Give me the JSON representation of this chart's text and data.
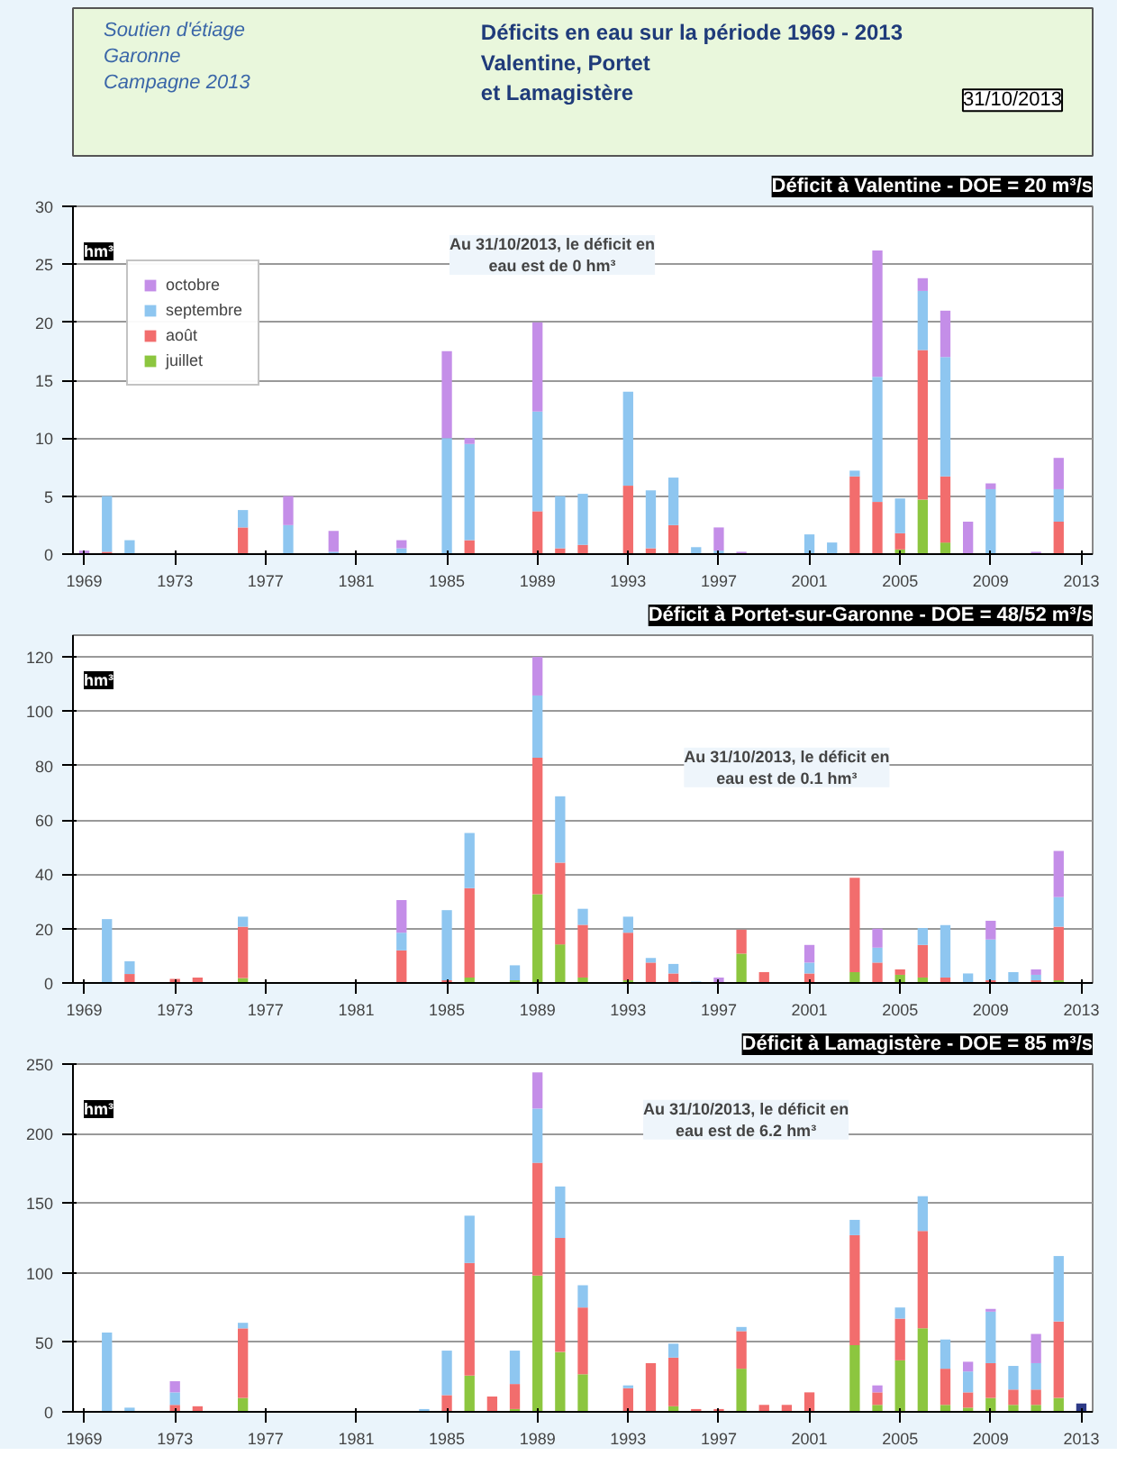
{
  "chart_data": [
    {
      "type": "other",
      "title": "Déficits en eau sur la période 1969 - 2013\nValentine, Portet\net Lamagistère",
      "annotations": [
        "Soutien d'étiage\nGaronne\nCampagne 2013",
        "31/10/2013"
      ]
    },
    {
      "type": "bar",
      "title": "Déficit à Valentine - DOE = 20 m³/s",
      "stacked": true,
      "legend": "top left",
      "grid": "y",
      "ylim": [
        0,
        30
      ],
      "yticks": [
        0,
        5,
        10,
        15,
        20,
        25,
        30
      ],
      "annotations": [
        "hm³",
        "Au 31/10/2013, le déficit en\neau est de 0 hm³"
      ],
      "categories": [
        "1969",
        null,
        null,
        null,
        "1973",
        null,
        null,
        null,
        "1977",
        null,
        null,
        null,
        "1981",
        null,
        null,
        null,
        "1985",
        null,
        null,
        null,
        "1989",
        null,
        null,
        null,
        "1993",
        null,
        null,
        null,
        "1997",
        null,
        null,
        null,
        "2001",
        null,
        null,
        null,
        "2005",
        null,
        null,
        null,
        "2009",
        null,
        null,
        null,
        "2013"
      ],
      "series": [
        {
          "name": "juillet",
          "color": "#8cc63f",
          "values": [
            null,
            null,
            null,
            null,
            null,
            null,
            null,
            null,
            null,
            null,
            null,
            null,
            null,
            null,
            null,
            null,
            null,
            null,
            null,
            null,
            null,
            null,
            null,
            null,
            null,
            null,
            null,
            null,
            null,
            null,
            null,
            null,
            null,
            null,
            null,
            null,
            0.4,
            4.7,
            1,
            null,
            null,
            null,
            null,
            null,
            null
          ]
        },
        {
          "name": "août",
          "color": "#f26d6d",
          "values": [
            null,
            0.2,
            null,
            null,
            null,
            null,
            null,
            2.3,
            null,
            null,
            null,
            null,
            null,
            null,
            null,
            null,
            null,
            1.2,
            null,
            null,
            3.7,
            0.5,
            0.8,
            null,
            5.9,
            0.5,
            2.5,
            null,
            null,
            null,
            null,
            null,
            null,
            null,
            6.7,
            4.5,
            1.4,
            12.9,
            5.7,
            null,
            null,
            null,
            null,
            2.8,
            null
          ]
        },
        {
          "name": "septembre",
          "color": "#8ec6f0",
          "values": [
            null,
            4.8,
            1.2,
            null,
            null,
            null,
            null,
            1.5,
            null,
            2.5,
            null,
            0.2,
            null,
            null,
            0.5,
            null,
            10,
            8.3,
            null,
            null,
            8.6,
            4.5,
            4.4,
            null,
            8.1,
            5,
            4.1,
            0.6,
            0.3,
            null,
            null,
            null,
            1.7,
            1,
            0.5,
            10.8,
            3,
            5.1,
            10.3,
            null,
            5.6,
            null,
            null,
            2.8,
            null
          ]
        },
        {
          "name": "octobre",
          "color": "#c48ee8",
          "values": [
            0.3,
            null,
            null,
            null,
            null,
            null,
            null,
            null,
            null,
            2.5,
            null,
            1.8,
            null,
            null,
            0.7,
            null,
            7.5,
            0.5,
            null,
            null,
            7.7,
            null,
            null,
            null,
            null,
            null,
            null,
            null,
            2,
            0.2,
            null,
            null,
            null,
            null,
            null,
            10.9,
            null,
            1.1,
            4,
            2.8,
            0.5,
            null,
            0.2,
            2.7,
            null
          ]
        }
      ]
    },
    {
      "type": "bar",
      "title": "Déficit à Portet-sur-Garonne - DOE = 48/52 m³/s",
      "stacked": true,
      "grid": "y",
      "ylim": [
        0,
        128
      ],
      "yticks": [
        0,
        20,
        40,
        60,
        80,
        100,
        120
      ],
      "annotations": [
        "hm³",
        "Au 31/10/2013, le déficit en\neau est de 0.1 hm³"
      ],
      "categories": [
        "1969",
        null,
        null,
        null,
        "1973",
        null,
        null,
        null,
        "1977",
        null,
        null,
        null,
        "1981",
        null,
        null,
        null,
        "1985",
        null,
        null,
        null,
        "1989",
        null,
        null,
        null,
        "1993",
        null,
        null,
        null,
        "1997",
        null,
        null,
        null,
        "2001",
        null,
        null,
        null,
        "2005",
        null,
        null,
        null,
        "2009",
        null,
        null,
        null,
        "2013"
      ],
      "series": [
        {
          "color": "#8cc63f",
          "values": [
            null,
            null,
            null,
            null,
            null,
            null,
            null,
            1.8,
            null,
            null,
            null,
            null,
            null,
            null,
            null,
            null,
            null,
            2,
            null,
            1,
            32.7,
            14.2,
            2,
            null,
            1,
            null,
            null,
            null,
            null,
            10.8,
            null,
            null,
            null,
            null,
            4,
            null,
            3,
            2,
            null,
            null,
            null,
            null,
            null,
            1,
            null
          ]
        },
        {
          "color": "#f26d6d",
          "values": [
            null,
            null,
            3.3,
            null,
            1.5,
            2,
            null,
            18.9,
            null,
            null,
            null,
            null,
            null,
            null,
            12,
            null,
            1,
            32.9,
            null,
            null,
            50.2,
            30.1,
            19.4,
            null,
            17.5,
            7.5,
            3.5,
            null,
            null,
            8.8,
            4,
            null,
            3.5,
            null,
            34.7,
            7.5,
            2,
            12,
            2,
            null,
            1,
            null,
            1,
            19.7,
            null
          ]
        },
        {
          "color": "#8ec6f0",
          "values": [
            null,
            23.5,
            4.7,
            null,
            null,
            null,
            null,
            3.7,
            null,
            null,
            null,
            null,
            null,
            null,
            6.5,
            null,
            25.8,
            20.3,
            null,
            5.5,
            22.9,
            24.4,
            5.9,
            null,
            5.9,
            1.7,
            3.5,
            0.5,
            null,
            null,
            null,
            null,
            4,
            null,
            null,
            5.5,
            null,
            6.2,
            19.3,
            3.5,
            15,
            4,
            2,
            10.9,
            null
          ]
        },
        {
          "color": "#c48ee8",
          "values": [
            null,
            null,
            null,
            null,
            null,
            null,
            null,
            null,
            null,
            null,
            null,
            null,
            null,
            null,
            12,
            null,
            null,
            null,
            null,
            null,
            14.2,
            null,
            null,
            null,
            null,
            null,
            null,
            null,
            2,
            null,
            null,
            null,
            6.5,
            null,
            null,
            7,
            null,
            null,
            null,
            null,
            6.9,
            null,
            2,
            17,
            null
          ]
        }
      ]
    },
    {
      "type": "bar",
      "title": "Déficit à Lamagistère - DOE = 85 m³/s",
      "stacked": true,
      "grid": "y",
      "ylim": [
        0,
        250
      ],
      "yticks": [
        0,
        50,
        100,
        150,
        200,
        250
      ],
      "annotations": [
        "hm³",
        "Au 31/10/2013, le déficit en\neau est de 6.2 hm³"
      ],
      "categories": [
        "1969",
        null,
        null,
        null,
        "1973",
        null,
        null,
        null,
        "1977",
        null,
        null,
        null,
        "1981",
        null,
        null,
        null,
        "1985",
        null,
        null,
        null,
        "1989",
        null,
        null,
        null,
        "1993",
        null,
        null,
        null,
        "1997",
        null,
        null,
        null,
        "2001",
        null,
        null,
        null,
        "2005",
        null,
        null,
        null,
        "2009",
        null,
        null,
        null,
        "2013"
      ],
      "series": [
        {
          "color": "#8cc63f",
          "values": [
            null,
            null,
            null,
            null,
            null,
            null,
            null,
            10,
            null,
            null,
            null,
            null,
            null,
            null,
            null,
            null,
            null,
            26,
            null,
            2,
            98,
            43,
            27,
            null,
            null,
            null,
            4,
            null,
            null,
            31,
            null,
            null,
            null,
            null,
            48,
            5,
            37,
            60,
            5,
            3,
            10,
            5,
            5,
            10,
            null
          ]
        },
        {
          "color": "#f26d6d",
          "values": [
            null,
            null,
            null,
            null,
            5,
            4,
            null,
            50,
            null,
            null,
            null,
            null,
            null,
            null,
            null,
            null,
            12,
            81,
            11,
            18,
            81,
            82,
            48,
            null,
            17,
            35,
            35,
            2,
            2,
            27,
            5,
            5,
            14,
            null,
            79,
            9,
            30,
            70,
            26,
            11,
            25,
            11,
            11,
            55,
            null
          ]
        },
        {
          "color": "#8ec6f0",
          "values": [
            null,
            57,
            3,
            null,
            9,
            null,
            null,
            4,
            null,
            null,
            null,
            null,
            null,
            null,
            null,
            2,
            32,
            34,
            null,
            24,
            39,
            37,
            16,
            null,
            2,
            null,
            10,
            null,
            null,
            3,
            null,
            null,
            null,
            null,
            11,
            null,
            8,
            25,
            21,
            15,
            37,
            17,
            19,
            47,
            null
          ]
        },
        {
          "color": "#c48ee8",
          "values": [
            null,
            null,
            null,
            null,
            8,
            null,
            null,
            null,
            null,
            null,
            null,
            null,
            null,
            null,
            null,
            null,
            null,
            null,
            null,
            null,
            26,
            null,
            null,
            null,
            null,
            null,
            null,
            null,
            null,
            null,
            null,
            null,
            null,
            null,
            null,
            5,
            null,
            null,
            null,
            7,
            2,
            null,
            21,
            null,
            null
          ]
        },
        {
          "color": "#2e3a87",
          "values": [
            null,
            null,
            null,
            null,
            null,
            null,
            null,
            null,
            null,
            null,
            null,
            null,
            null,
            null,
            null,
            null,
            null,
            null,
            null,
            null,
            null,
            null,
            null,
            null,
            null,
            null,
            null,
            null,
            null,
            null,
            null,
            null,
            null,
            null,
            null,
            null,
            null,
            null,
            null,
            null,
            null,
            null,
            null,
            null,
            6
          ]
        }
      ]
    }
  ]
}
